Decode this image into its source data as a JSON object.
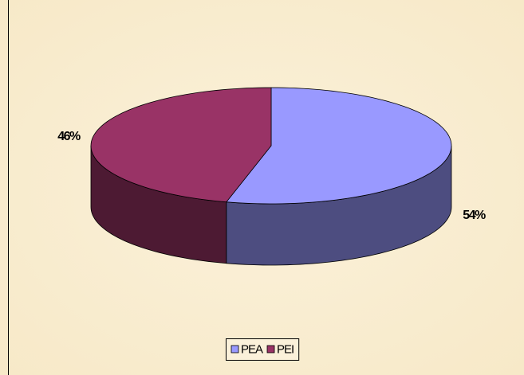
{
  "chart_data": {
    "type": "pie3d",
    "categories": [
      "PEA",
      "PEI"
    ],
    "values": [
      54,
      46
    ],
    "value_labels": [
      "54%",
      "46%"
    ],
    "colors": [
      "#9999ff",
      "#993366"
    ],
    "legend": "bottom"
  }
}
